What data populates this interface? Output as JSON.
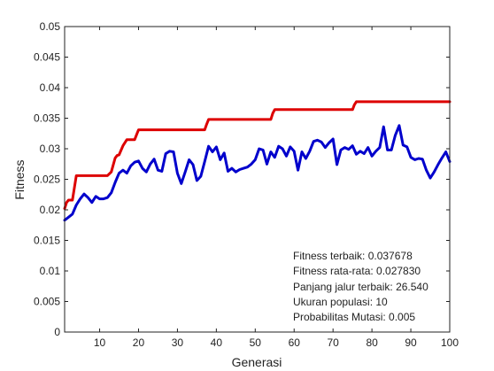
{
  "chart_data": {
    "type": "line",
    "title": "",
    "xlabel": "Generasi",
    "ylabel": "Fitness",
    "xlim": [
      1,
      100
    ],
    "ylim": [
      0,
      0.05
    ],
    "xticks": [
      10,
      20,
      30,
      40,
      50,
      60,
      70,
      80,
      90,
      100
    ],
    "yticks": [
      0,
      0.005,
      0.01,
      0.015,
      0.02,
      0.025,
      0.03,
      0.035,
      0.04,
      0.045,
      0.05
    ],
    "xtick_labels": [
      "10",
      "20",
      "30",
      "40",
      "50",
      "60",
      "70",
      "80",
      "90",
      "100"
    ],
    "ytick_labels": [
      "0",
      "0.005",
      "0.01",
      "0.015",
      "0.02",
      "0.025",
      "0.03",
      "0.035",
      "0.04",
      "0.045",
      "0.05"
    ],
    "grid": false,
    "series": [
      {
        "color": "#dd0000",
        "x": [
          1,
          1.5,
          2,
          3,
          3.5,
          4,
          12,
          13,
          14,
          14.5,
          15,
          16,
          17,
          18,
          19,
          19.5,
          20,
          37,
          37.5,
          38,
          54,
          54.5,
          55,
          75,
          75.5,
          76,
          100
        ],
        "y": [
          0.0202,
          0.0212,
          0.0216,
          0.0216,
          0.0236,
          0.0256,
          0.0256,
          0.0262,
          0.0285,
          0.0289,
          0.029,
          0.0305,
          0.0315,
          0.0315,
          0.0315,
          0.0323,
          0.0331,
          0.0331,
          0.034,
          0.0348,
          0.0348,
          0.0358,
          0.0364,
          0.0364,
          0.0372,
          0.0377,
          0.0377
        ]
      },
      {
        "color": "#0000cc",
        "x": [
          1,
          2,
          3,
          4,
          5,
          6,
          7,
          8,
          9,
          10,
          11,
          12,
          13,
          14,
          15,
          16,
          17,
          18,
          19,
          20,
          21,
          22,
          23,
          24,
          25,
          26,
          27,
          28,
          29,
          30,
          31,
          32,
          33,
          34,
          35,
          36,
          37,
          38,
          39,
          40,
          41,
          42,
          43,
          44,
          45,
          46,
          47,
          48,
          49,
          50,
          51,
          52,
          53,
          54,
          55,
          56,
          57,
          58,
          59,
          60,
          61,
          62,
          63,
          64,
          65,
          66,
          67,
          68,
          69,
          70,
          71,
          72,
          73,
          74,
          75,
          76,
          77,
          78,
          79,
          80,
          81,
          82,
          83,
          84,
          85,
          86,
          87,
          88,
          89,
          90,
          91,
          92,
          93,
          94,
          95,
          96,
          97,
          98,
          99,
          100
        ],
        "y": [
          0.0183,
          0.0188,
          0.0193,
          0.0208,
          0.0218,
          0.0226,
          0.022,
          0.0212,
          0.0222,
          0.0218,
          0.0218,
          0.022,
          0.0228,
          0.0245,
          0.026,
          0.0265,
          0.026,
          0.0272,
          0.0278,
          0.028,
          0.0268,
          0.0262,
          0.0275,
          0.0283,
          0.0265,
          0.0263,
          0.0292,
          0.0296,
          0.0295,
          0.026,
          0.0243,
          0.0262,
          0.0282,
          0.0274,
          0.0248,
          0.0255,
          0.0279,
          0.0304,
          0.0295,
          0.0303,
          0.0282,
          0.0293,
          0.0263,
          0.0268,
          0.0262,
          0.0266,
          0.0268,
          0.027,
          0.0275,
          0.0282,
          0.03,
          0.0298,
          0.0275,
          0.0295,
          0.0286,
          0.0304,
          0.03,
          0.0288,
          0.0303,
          0.0296,
          0.0265,
          0.0295,
          0.0284,
          0.0296,
          0.0312,
          0.0314,
          0.0311,
          0.0302,
          0.031,
          0.0316,
          0.0274,
          0.0298,
          0.0302,
          0.0299,
          0.0305,
          0.0291,
          0.0296,
          0.0292,
          0.0302,
          0.0288,
          0.0296,
          0.0302,
          0.0336,
          0.0298,
          0.0298,
          0.0322,
          0.0338,
          0.0306,
          0.0303,
          0.0286,
          0.0282,
          0.0284,
          0.0283,
          0.0265,
          0.0252,
          0.0262,
          0.0274,
          0.0285,
          0.0295,
          0.0279
        ]
      }
    ],
    "annotations": [
      "Fitness terbaik: 0.037678",
      "Fitness rata-rata: 0.027830",
      "Panjang jalur terbaik:  26.540",
      "Ukuran populasi:  10",
      "Probabilitas Mutasi: 0.005"
    ]
  }
}
